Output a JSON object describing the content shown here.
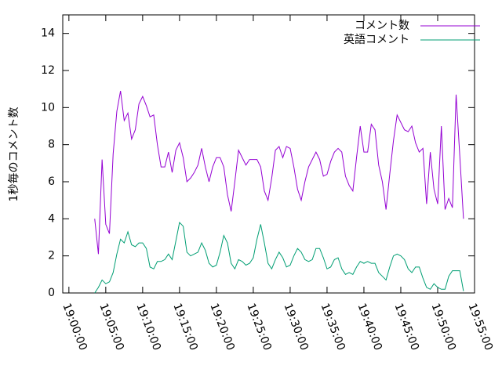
{
  "chart_data": {
    "type": "line",
    "ylabel": "1秒毎のコメント数",
    "x": [
      "19:03:30",
      "19:04:00",
      "19:04:30",
      "19:05:00",
      "19:05:30",
      "19:06:00",
      "19:06:30",
      "19:07:00",
      "19:07:30",
      "19:08:00",
      "19:08:30",
      "19:09:00",
      "19:09:30",
      "19:10:00",
      "19:10:30",
      "19:11:00",
      "19:11:30",
      "19:12:00",
      "19:12:30",
      "19:13:00",
      "19:13:30",
      "19:14:00",
      "19:14:30",
      "19:15:00",
      "19:15:30",
      "19:16:00",
      "19:16:30",
      "19:17:00",
      "19:17:30",
      "19:18:00",
      "19:18:30",
      "19:19:00",
      "19:19:30",
      "19:20:00",
      "19:20:30",
      "19:21:00",
      "19:21:30",
      "19:22:00",
      "19:22:30",
      "19:23:00",
      "19:23:30",
      "19:24:00",
      "19:24:30",
      "19:25:00",
      "19:25:30",
      "19:26:00",
      "19:26:30",
      "19:27:00",
      "19:27:30",
      "19:28:00",
      "19:28:30",
      "19:29:00",
      "19:29:30",
      "19:30:00",
      "19:30:30",
      "19:31:00",
      "19:31:30",
      "19:32:00",
      "19:32:30",
      "19:33:00",
      "19:33:30",
      "19:34:00",
      "19:34:30",
      "19:35:00",
      "19:35:30",
      "19:36:00",
      "19:36:30",
      "19:37:00",
      "19:37:30",
      "19:38:00",
      "19:38:30",
      "19:39:00",
      "19:39:30",
      "19:40:00",
      "19:40:30",
      "19:41:00",
      "19:41:30",
      "19:42:00",
      "19:42:30",
      "19:43:00",
      "19:43:30",
      "19:44:00",
      "19:44:30",
      "19:45:00",
      "19:45:30",
      "19:46:00",
      "19:46:30",
      "19:47:00",
      "19:47:30",
      "19:48:00",
      "19:48:30",
      "19:49:00",
      "19:49:30",
      "19:50:00",
      "19:50:30",
      "19:51:00",
      "19:51:30",
      "19:52:00",
      "19:52:30",
      "19:53:00",
      "19:53:30"
    ],
    "series": [
      {
        "name": "コメント数",
        "color": "#9400d3",
        "values": [
          4.0,
          2.1,
          7.2,
          3.7,
          3.2,
          7.5,
          9.8,
          10.9,
          9.3,
          9.7,
          8.3,
          8.8,
          10.2,
          10.6,
          10.1,
          9.5,
          9.6,
          8.0,
          6.8,
          6.8,
          7.6,
          6.5,
          7.7,
          8.1,
          7.3,
          6.0,
          6.2,
          6.5,
          6.9,
          7.8,
          6.8,
          6.0,
          6.8,
          7.3,
          7.3,
          6.8,
          5.3,
          4.4,
          6.0,
          7.7,
          7.3,
          6.9,
          7.2,
          7.2,
          7.2,
          6.8,
          5.5,
          5.0,
          6.2,
          7.7,
          7.9,
          7.3,
          7.9,
          7.8,
          6.8,
          5.6,
          5.0,
          6.0,
          6.8,
          7.2,
          7.6,
          7.2,
          6.3,
          6.4,
          7.1,
          7.6,
          7.8,
          7.6,
          6.3,
          5.8,
          5.5,
          7.3,
          9.0,
          7.6,
          7.6,
          9.1,
          8.8,
          6.9,
          6.0,
          4.5,
          6.4,
          8.2,
          9.6,
          9.2,
          8.8,
          8.7,
          9.0,
          8.1,
          7.6,
          7.8,
          4.8,
          7.6,
          5.6,
          4.8,
          9.0,
          4.5,
          5.1,
          4.6,
          10.7,
          7.4,
          4.0
        ]
      },
      {
        "name": "英語コメント",
        "color": "#009e73",
        "values": [
          0,
          0.3,
          0.7,
          0.5,
          0.6,
          1.1,
          2.1,
          2.9,
          2.7,
          3.3,
          2.6,
          2.5,
          2.7,
          2.7,
          2.4,
          1.4,
          1.3,
          1.7,
          1.7,
          1.8,
          2.1,
          1.8,
          2.8,
          3.8,
          3.6,
          2.2,
          2.0,
          2.1,
          2.2,
          2.7,
          2.3,
          1.6,
          1.4,
          1.5,
          2.2,
          3.1,
          2.7,
          1.6,
          1.3,
          1.8,
          1.7,
          1.5,
          1.6,
          1.9,
          2.9,
          3.7,
          2.7,
          1.6,
          1.3,
          1.8,
          2.2,
          1.9,
          1.4,
          1.5,
          2.0,
          2.4,
          2.2,
          1.8,
          1.7,
          1.8,
          2.4,
          2.4,
          1.9,
          1.3,
          1.4,
          1.8,
          1.9,
          1.3,
          1.0,
          1.1,
          1.0,
          1.4,
          1.7,
          1.6,
          1.7,
          1.6,
          1.6,
          1.1,
          0.9,
          0.7,
          1.4,
          2.0,
          2.1,
          2.0,
          1.8,
          1.3,
          1.1,
          1.4,
          1.4,
          0.8,
          0.3,
          0.2,
          0.5,
          0.3,
          0.2,
          0.2,
          0.9,
          1.2,
          1.2,
          1.2,
          0.1
        ]
      }
    ],
    "xlim": [
      "18:59:10",
      "19:55:00"
    ],
    "xticks": [
      "19:00:00",
      "19:05:00",
      "19:10:00",
      "19:15:00",
      "19:20:00",
      "19:25:00",
      "19:30:00",
      "19:35:00",
      "19:40:00",
      "19:45:00",
      "19:50:00",
      "19:55:00"
    ],
    "ylim": [
      0,
      15
    ],
    "yticks": [
      0,
      2,
      4,
      6,
      8,
      10,
      12,
      14
    ],
    "legend": "top-right"
  }
}
